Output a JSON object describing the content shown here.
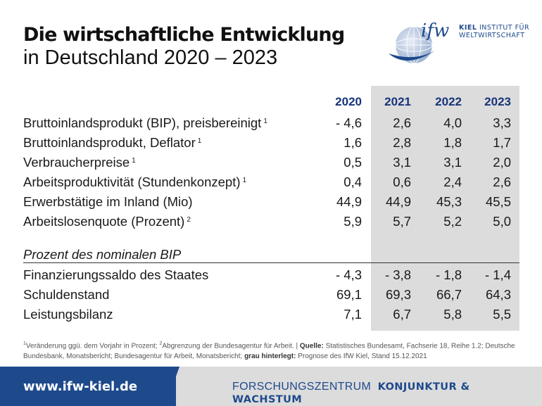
{
  "title_line1": "Die wirtschaftliche Entwicklung",
  "title_line2": "in Deutschland 2020 – 2023",
  "logo": {
    "text_line1_bold": "KIEL",
    "text_line1": " INSTITUT FÜR",
    "text_line2": "WELTWIRTSCHAFT",
    "wordmark": "ifw"
  },
  "years": [
    "2020",
    "2021",
    "2022",
    "2023"
  ],
  "rows": [
    {
      "label": "Bruttoinlandsprodukt (BIP), preisbereinigt",
      "note": "1",
      "values": [
        "- 4,6",
        "2,6",
        "4,0",
        "3,3"
      ]
    },
    {
      "label": "Bruttoinlandsprodukt, Deflator",
      "note": "1",
      "values": [
        "1,6",
        "2,8",
        "1,8",
        "1,7"
      ]
    },
    {
      "label": "Verbraucherpreise",
      "note": "1",
      "values": [
        "0,5",
        "3,1",
        "3,1",
        "2,0"
      ]
    },
    {
      "label": "Arbeitsproduktivität (Stundenkonzept)",
      "note": "1",
      "values": [
        "0,4",
        "0,6",
        "2,4",
        "2,6"
      ]
    },
    {
      "label": "Erwerbstätige im Inland (Mio)",
      "note": "",
      "values": [
        "44,9",
        "44,9",
        "45,3",
        "45,5"
      ]
    },
    {
      "label": "Arbeitslosenquote (Prozent)",
      "note": "2",
      "values": [
        "5,9",
        "5,7",
        "5,2",
        "5,0"
      ]
    }
  ],
  "section_label": "Prozent des nominalen BIP",
  "rows2": [
    {
      "label": "Finanzierungssaldo des Staates",
      "values": [
        "- 4,3",
        "- 3,8",
        "- 1,8",
        "- 1,4"
      ]
    },
    {
      "label": "Schuldenstand",
      "values": [
        "69,1",
        "69,3",
        "66,7",
        "64,3"
      ]
    },
    {
      "label": "Leistungsbilanz",
      "values": [
        "7,1",
        "6,7",
        "5,8",
        "5,5"
      ]
    }
  ],
  "footnote": {
    "n1": "1",
    "n1_text": "Veränderung ggü. dem Vorjahr in Prozent;",
    "n2": "2",
    "n2_text": "Abgrenzung der Bundesagentur für Arbeit. |",
    "quelle_label": "Quelle:",
    "quelle_text": "Statistisches Bundesamt, Fachserie 18, Reihe 1.2; Deutsche Bundesbank, Monatsbericht; Bundesagentur für Arbeit, Monatsbericht;",
    "grau_label": "grau hinterlegt:",
    "grau_text": "Prognose des IfW Kiel, Stand 15.12.2021"
  },
  "footer": {
    "url": "www.ifw-kiel.de",
    "forschung": "FORSCHUNGSZENTRUM",
    "forschung_bold": "KONJUNKTUR & WACHSTUM"
  },
  "colors": {
    "brand_blue": "#1e4a8c",
    "header_blue": "#17347a",
    "forecast_shade": "#dcdcdc"
  }
}
